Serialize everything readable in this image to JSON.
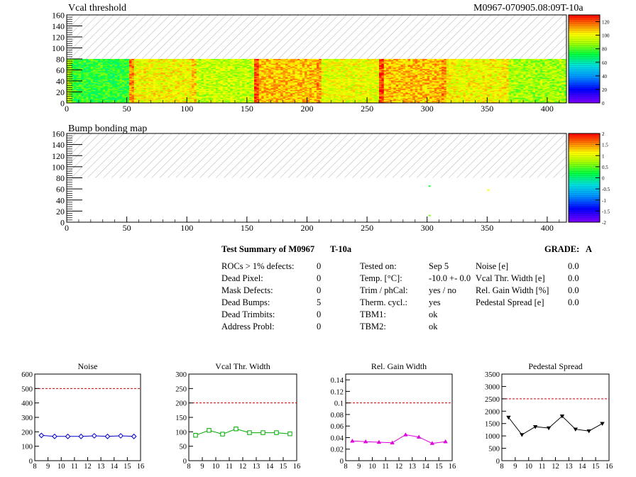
{
  "header": {
    "left_title": "Vcal threshold",
    "right_title": "M0967-070905.08:09T-10a"
  },
  "panel2_title": "Bump bonding map",
  "summary": {
    "title": "Test Summary of M0967",
    "subtitle": "T-10a",
    "grade_label": "GRADE:",
    "grade_value": "A",
    "col1": [
      {
        "label": "ROCs > 1% defects:",
        "value": "0"
      },
      {
        "label": "Dead Pixel:",
        "value": "0"
      },
      {
        "label": "Mask Defects:",
        "value": "0"
      },
      {
        "label": "Dead Bumps:",
        "value": "5"
      },
      {
        "label": "Dead Trimbits:",
        "value": "0"
      },
      {
        "label": "Address Probl:",
        "value": "0"
      }
    ],
    "col2": [
      {
        "label": "Tested on:",
        "value": "Sep 5"
      },
      {
        "label": "Temp. [°C]:",
        "value": "-10.0 +- 0.0"
      },
      {
        "label": "Trim / phCal:",
        "value": "yes / no"
      },
      {
        "label": "Therm. cycl.:",
        "value": "yes"
      },
      {
        "label": "TBM1:",
        "value": "ok"
      },
      {
        "label": "TBM2:",
        "value": "ok"
      }
    ],
    "col3": [
      {
        "label": "Noise [e]",
        "value": "0.0"
      },
      {
        "label": "Vcal Thr. Width [e]",
        "value": "0.0"
      },
      {
        "label": "Rel. Gain Width [%]",
        "value": "0.0"
      },
      {
        "label": "Pedestal Spread [e]",
        "value": "0.0"
      }
    ]
  },
  "colors": {
    "noise": "#0000cc",
    "vcal": "#00aa00",
    "gain": "#dd00dd",
    "pedestal": "#000000",
    "limit": "#cc0000"
  },
  "chart_data": [
    {
      "type": "heatmap",
      "title": "Vcal threshold",
      "xlim": [
        0,
        416
      ],
      "ylim": [
        0,
        160
      ],
      "xticks": [
        0,
        50,
        100,
        150,
        200,
        250,
        300,
        350,
        400
      ],
      "yticks": [
        0,
        20,
        40,
        60,
        80,
        100,
        120,
        140,
        160
      ],
      "filled_rows": [
        0,
        80
      ],
      "roc_columns": 8,
      "roc_mean_values": [
        75,
        100,
        92,
        108,
        98,
        108,
        100,
        88
      ],
      "colorbar_ticks": [
        0,
        20,
        40,
        60,
        80,
        100,
        120
      ],
      "zlim": [
        0,
        130
      ]
    },
    {
      "type": "heatmap",
      "title": "Bump bonding map",
      "xlim": [
        0,
        416
      ],
      "ylim": [
        0,
        160
      ],
      "xticks": [
        0,
        50,
        100,
        150,
        200,
        250,
        300,
        350,
        400
      ],
      "yticks": [
        0,
        20,
        40,
        60,
        80,
        100,
        120,
        140,
        160
      ],
      "filled_rows": [
        0,
        80
      ],
      "points": [
        {
          "x": 302,
          "y": 65,
          "z": 0.3
        },
        {
          "x": 302,
          "y": 12,
          "z": 0.6
        },
        {
          "x": 351,
          "y": 58,
          "z": 1.1
        }
      ],
      "colorbar_ticks": [
        -2,
        -1.5,
        -1,
        -0.5,
        0,
        0.5,
        1,
        1.5,
        2
      ],
      "zlim": [
        -2,
        2
      ]
    },
    {
      "type": "line",
      "title": "Noise",
      "x": [
        8.5,
        9.5,
        10.5,
        11.5,
        12.5,
        13.5,
        14.5,
        15.5
      ],
      "values": [
        175,
        168,
        168,
        168,
        172,
        168,
        172,
        168
      ],
      "limit": 500,
      "xlim": [
        8,
        16
      ],
      "ylim": [
        0,
        600
      ],
      "xticks": [
        8,
        9,
        10,
        11,
        12,
        13,
        14,
        15,
        16
      ],
      "yticks": [
        0,
        100,
        200,
        300,
        400,
        500,
        600
      ],
      "marker": "diamond"
    },
    {
      "type": "line",
      "title": "Vcal Thr. Width",
      "x": [
        8.5,
        9.5,
        10.5,
        11.5,
        12.5,
        13.5,
        14.5,
        15.5
      ],
      "values": [
        88,
        105,
        92,
        110,
        97,
        97,
        97,
        93
      ],
      "limit": 200,
      "xlim": [
        8,
        16
      ],
      "ylim": [
        0,
        300
      ],
      "xticks": [
        8,
        9,
        10,
        11,
        12,
        13,
        14,
        15,
        16
      ],
      "yticks": [
        0,
        50,
        100,
        150,
        200,
        250,
        300
      ],
      "marker": "square"
    },
    {
      "type": "line",
      "title": "Rel. Gain Width",
      "x": [
        8.5,
        9.5,
        10.5,
        11.5,
        12.5,
        13.5,
        14.5,
        15.5
      ],
      "values": [
        0.034,
        0.033,
        0.032,
        0.031,
        0.045,
        0.041,
        0.03,
        0.033
      ],
      "limit": 0.1,
      "xlim": [
        8,
        16
      ],
      "ylim": [
        0,
        0.15
      ],
      "xticks": [
        8,
        9,
        10,
        11,
        12,
        13,
        14,
        15,
        16
      ],
      "yticks": [
        0,
        0.02,
        0.04,
        0.06,
        0.08,
        0.1,
        0.12,
        0.14
      ],
      "marker": "triangle-up"
    },
    {
      "type": "line",
      "title": "Pedestal Spread",
      "x": [
        8.5,
        9.5,
        10.5,
        11.5,
        12.5,
        13.5,
        14.5,
        15.5
      ],
      "values": [
        1750,
        1050,
        1370,
        1320,
        1800,
        1270,
        1200,
        1500
      ],
      "limit": 2500,
      "xlim": [
        8,
        16
      ],
      "ylim": [
        0,
        3500
      ],
      "xticks": [
        8,
        9,
        10,
        11,
        12,
        13,
        14,
        15,
        16
      ],
      "yticks": [
        0,
        500,
        1000,
        1500,
        2000,
        2500,
        3000,
        3500
      ],
      "marker": "triangle-down"
    }
  ]
}
